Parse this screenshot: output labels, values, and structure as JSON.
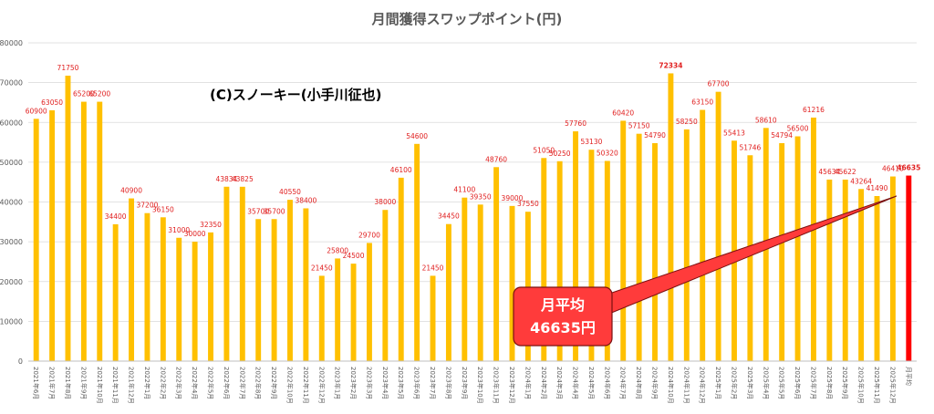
{
  "chart_data": {
    "type": "bar",
    "title": "月間獲得スワップポイント(円)",
    "copyright": "(C)スノーキー(小手川征也)",
    "ylim": [
      0,
      80000
    ],
    "yticks": [
      0,
      10000,
      20000,
      30000,
      40000,
      50000,
      60000,
      70000,
      80000
    ],
    "grid": true,
    "categories": [
      "2021年6月",
      "2021年7月",
      "2021年8月",
      "2021年9月",
      "2021年10月",
      "2021年11月",
      "2021年12月",
      "2022年1月",
      "2022年2月",
      "2022年3月",
      "2022年4月",
      "2022年5月",
      "2022年6月",
      "2022年7月",
      "2022年8月",
      "2022年9月",
      "2022年10月",
      "2022年11月",
      "2022年12月",
      "2023年1月",
      "2023年2月",
      "2023年3月",
      "2023年4月",
      "2023年5月",
      "2023年6月",
      "2023年7月",
      "2023年8月",
      "2023年9月",
      "2023年10月",
      "2023年11月",
      "2023年12月",
      "2024年1月",
      "2024年2月",
      "2024年3月",
      "2024年4月",
      "2024年5月",
      "2024年6月",
      "2024年7月",
      "2024年8月",
      "2024年9月",
      "2024年10月",
      "2024年11月",
      "2024年12月",
      "2025年1月",
      "2025年2月",
      "2025年3月",
      "2025年4月",
      "2025年5月",
      "2025年6月",
      "2025年7月",
      "2025年8月",
      "2025年9月",
      "2025年10月",
      "2025年11月",
      "2025年12月",
      "月平均"
    ],
    "values": [
      60900,
      63050,
      71750,
      65200,
      65200,
      34400,
      40900,
      37200,
      36150,
      31000,
      30000,
      32350,
      43834,
      43825,
      35700,
      35700,
      40550,
      38400,
      21450,
      25800,
      24500,
      29700,
      38000,
      46100,
      54600,
      21450,
      34450,
      41100,
      39350,
      48760,
      39000,
      37550,
      51050,
      50250,
      57760,
      53130,
      50320,
      60420,
      57150,
      54790,
      72334,
      58250,
      63150,
      67700,
      55413,
      51746,
      58610,
      54794,
      56500,
      61216,
      45634,
      45622,
      43264,
      41490,
      46410,
      46635
    ],
    "bar_color": "#ffc000",
    "average_bar_color": "#ff0000",
    "label_color": "#e02020",
    "highlight_index": 40,
    "callout": {
      "line1": "月平均",
      "line2": "46635円",
      "color": "#ff3b3b"
    }
  }
}
